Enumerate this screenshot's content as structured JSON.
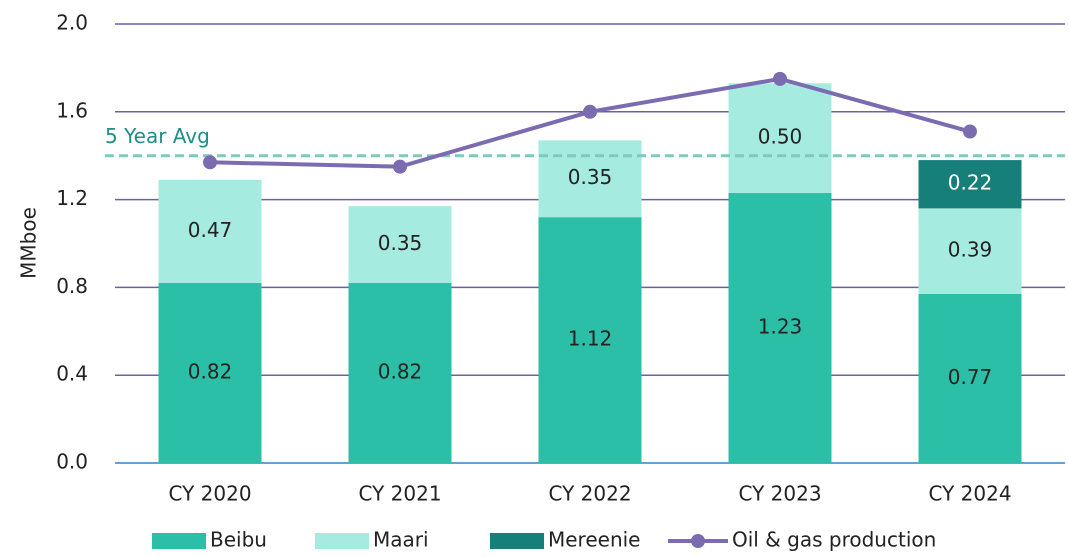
{
  "chart_data": {
    "type": "stacked_bar_line",
    "y_label": "MMboe",
    "categories": [
      "CY 2020",
      "CY 2021",
      "CY 2022",
      "CY 2023",
      "CY 2024"
    ],
    "series": [
      {
        "name": "Beibu",
        "color": "#2bbfa8",
        "values": [
          0.82,
          0.82,
          1.12,
          1.23,
          0.77
        ],
        "value_labels": [
          "0.82",
          "0.82",
          "1.12",
          "1.23",
          "0.77"
        ]
      },
      {
        "name": "Maari",
        "color": "#a6ebe0",
        "values": [
          0.47,
          0.35,
          0.35,
          0.5,
          0.39
        ],
        "value_labels": [
          "0.47",
          "0.35",
          "0.35",
          "0.50",
          "0.39"
        ]
      },
      {
        "name": "Mereenie",
        "color": "#167f7a",
        "values": [
          null,
          null,
          null,
          null,
          0.22
        ],
        "value_labels": [
          null,
          null,
          null,
          null,
          "0.22"
        ]
      },
      {
        "name": "Oil & gas production",
        "type": "line",
        "color": "#7b6bb0",
        "values": [
          1.37,
          1.35,
          1.6,
          1.75,
          1.51
        ]
      }
    ],
    "reference_line": {
      "label": "5 Year Avg",
      "value": 1.4,
      "color": "#7fc9bd"
    },
    "ylim": [
      0,
      2
    ],
    "yticks": [
      {
        "value": 0,
        "label": "0.0"
      },
      0.4,
      0.8,
      1.2,
      1.6,
      {
        "value": 2,
        "label": "2.0"
      }
    ],
    "grid": true,
    "legend": "bottom"
  }
}
